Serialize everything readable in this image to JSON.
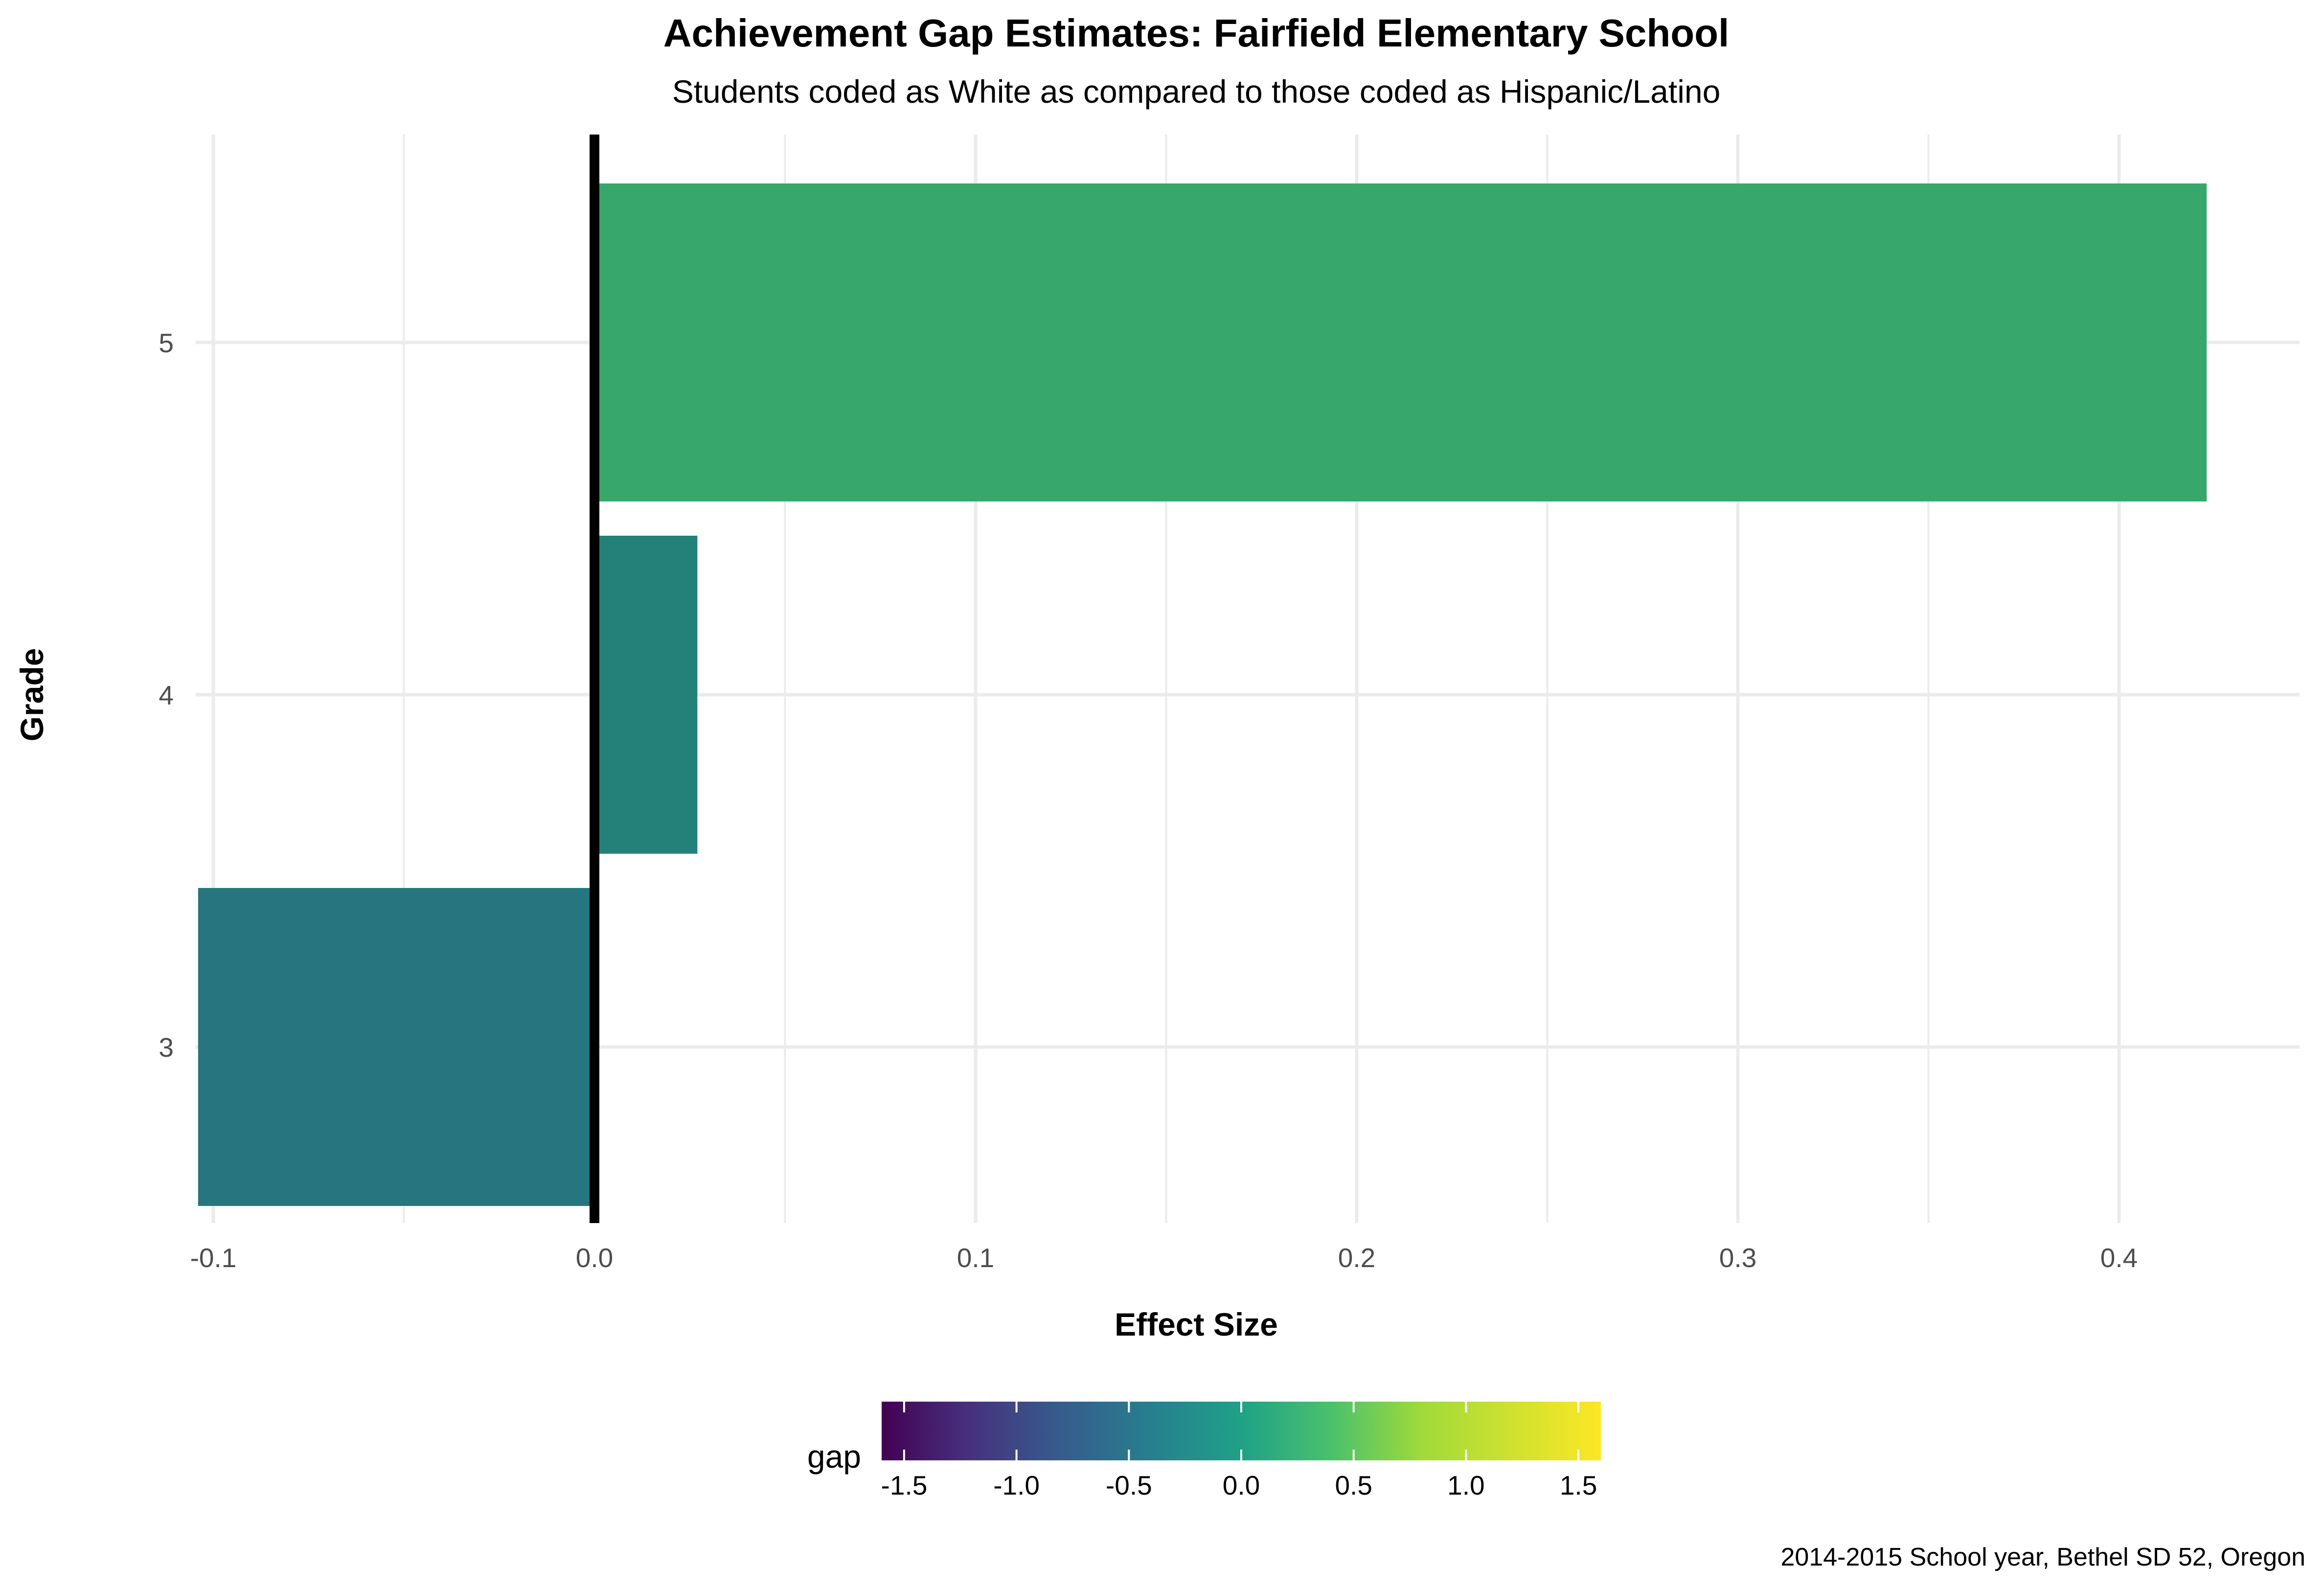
{
  "chart_data": {
    "type": "bar",
    "orientation": "horizontal",
    "title": "Achievement Gap Estimates: Fairfield Elementary School",
    "subtitle": "Students coded as White as compared to those coded as Hispanic/Latino",
    "xlabel": "Effect Size",
    "ylabel": "Grade",
    "categories": [
      "3",
      "4",
      "5"
    ],
    "values": [
      -0.104,
      0.027,
      0.423
    ],
    "xlim": [
      -0.11,
      0.44
    ],
    "x_ticks": [
      "-0.1",
      "0.0",
      "0.1",
      "0.2",
      "0.3",
      "0.4"
    ],
    "x_tick_values": [
      -0.1,
      0.0,
      0.1,
      0.2,
      0.3,
      0.4
    ],
    "zero_line": true,
    "grid": true,
    "legend": {
      "title": "gap",
      "type": "colorbar",
      "placement": "bottom",
      "range": [
        -1.6,
        1.6
      ],
      "ticks": [
        "-1.5",
        "-1.0",
        "-0.5",
        "0.0",
        "0.5",
        "1.0",
        "1.5"
      ],
      "tick_values": [
        -1.5,
        -1.0,
        -0.5,
        0.0,
        0.5,
        1.0,
        1.5
      ],
      "palette": "viridis"
    },
    "caption": "2014-2015 School year, Bethel SD 52, Oregon"
  },
  "colors": {
    "grade_3": "#26767F",
    "grade_4": "#23817A",
    "grade_5": "#37A76B",
    "grid": "#ebebeb",
    "zero_line": "#000000"
  }
}
